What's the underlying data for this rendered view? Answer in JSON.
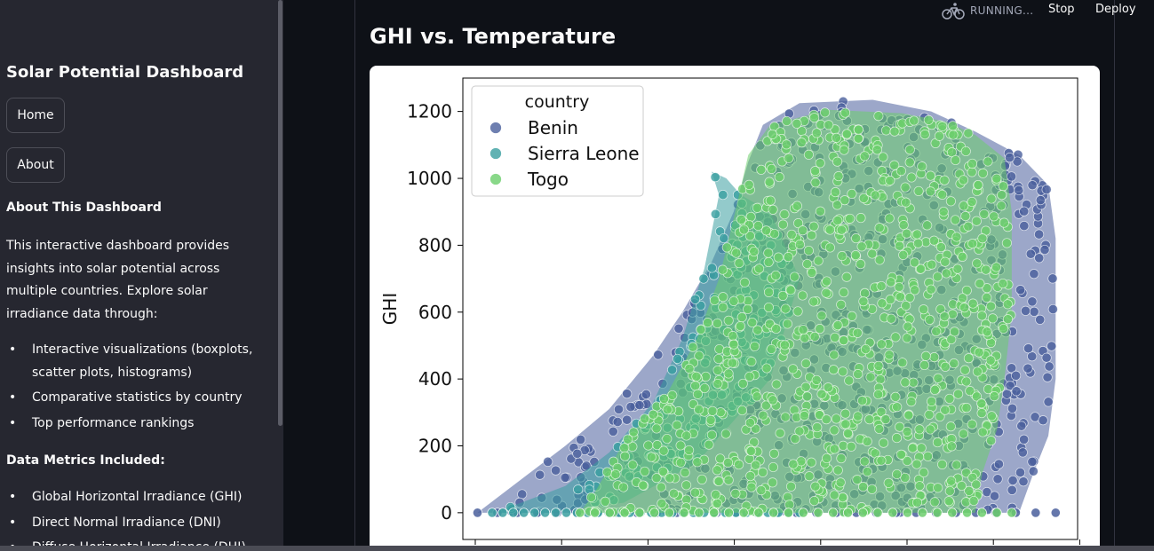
{
  "sidebar": {
    "title": "Solar Potential Dashboard",
    "nav": [
      {
        "label": "Home"
      },
      {
        "label": "About"
      }
    ],
    "about_heading": "About This Dashboard",
    "about_text": "This interactive dashboard provides insights into solar potential across multiple countries. Explore solar irradiance data through:",
    "features": [
      "Interactive visualizations (boxplots, scatter plots, histograms)",
      "Comparative statistics by country",
      "Top performance rankings"
    ],
    "metrics_heading": "Data Metrics Included:",
    "metrics": [
      "Global Horizontal Irradiance (GHI)",
      "Direct Normal Irradiance (DNI)",
      "Diffuse Horizontal Irradiance (DHI)"
    ]
  },
  "toolbar": {
    "status": "RUNNING...",
    "stop_label": "Stop",
    "deploy_label": "Deploy",
    "status_icon": "running-cyclist-icon"
  },
  "main": {
    "section_title": "GHI vs. Temperature"
  },
  "chart_data": {
    "type": "scatter",
    "title": "",
    "xlabel": "",
    "ylabel": "GHI",
    "ylim": [
      -80,
      1300
    ],
    "yticks": [
      0,
      200,
      400,
      600,
      800,
      1000,
      1200
    ],
    "grid": false,
    "legend": {
      "title": "country",
      "placement": "top-left",
      "entries": [
        "Benin",
        "Sierra Leone",
        "Togo"
      ]
    },
    "series": [
      {
        "name": "Benin",
        "color": "#4a5f9c",
        "envelope": [
          [
            0,
            0
          ],
          [
            3,
            100
          ],
          [
            6,
            200
          ],
          [
            9,
            310
          ],
          [
            12,
            470
          ],
          [
            14,
            600
          ],
          [
            16,
            750
          ],
          [
            17.5,
            900
          ],
          [
            18.5,
            1050
          ],
          [
            19.5,
            1160
          ],
          [
            22,
            1225
          ],
          [
            27,
            1235
          ],
          [
            31,
            1200
          ],
          [
            34,
            1140
          ],
          [
            37,
            1070
          ],
          [
            39,
            980
          ],
          [
            39.5,
            820
          ],
          [
            39.5,
            600
          ],
          [
            39.5,
            400
          ],
          [
            39,
            230
          ],
          [
            38,
            120
          ],
          [
            37,
            0
          ]
        ]
      },
      {
        "name": "Sierra Leone",
        "color": "#3a9fa0",
        "envelope": [
          [
            1,
            0
          ],
          [
            3,
            30
          ],
          [
            6,
            80
          ],
          [
            9,
            180
          ],
          [
            12,
            330
          ],
          [
            14,
            520
          ],
          [
            15.5,
            730
          ],
          [
            16.5,
            950
          ],
          [
            16,
            1020
          ],
          [
            17,
            1000
          ],
          [
            18,
            950
          ],
          [
            20,
            900
          ],
          [
            22,
            700
          ],
          [
            20,
            400
          ],
          [
            15,
            150
          ],
          [
            10,
            30
          ],
          [
            5,
            0
          ]
        ]
      },
      {
        "name": "Togo",
        "color": "#6cce6c",
        "envelope": [
          [
            7,
            0
          ],
          [
            8,
            60
          ],
          [
            10,
            210
          ],
          [
            13,
            360
          ],
          [
            15,
            520
          ],
          [
            16.5,
            700
          ],
          [
            17.5,
            880
          ],
          [
            18.5,
            1070
          ],
          [
            20,
            1160
          ],
          [
            24,
            1205
          ],
          [
            29,
            1195
          ],
          [
            32,
            1170
          ],
          [
            34,
            1130
          ],
          [
            36,
            1060
          ],
          [
            36.5,
            900
          ],
          [
            36.5,
            600
          ],
          [
            36,
            400
          ],
          [
            35.5,
            250
          ],
          [
            34.5,
            120
          ],
          [
            34,
            0
          ]
        ]
      }
    ]
  }
}
